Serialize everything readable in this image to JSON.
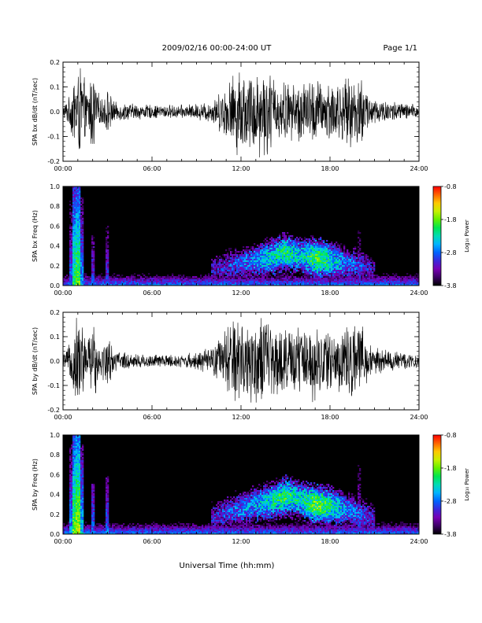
{
  "header": {
    "title": "2009/02/16  00:00-24:00 UT",
    "page": "Page 1/1"
  },
  "colors": {
    "trace": "#000000",
    "colorbar": [
      "#000000",
      "#3c0064",
      "#7800b4",
      "#3c28dc",
      "#0064ff",
      "#00b4ff",
      "#00dcb4",
      "#00e650",
      "#64f000",
      "#c8f000",
      "#ffc800",
      "#ff6400",
      "#ff0000"
    ]
  },
  "chart_data": [
    {
      "id": "bx-timeseries",
      "type": "line",
      "ylabel": "SPA bx dB/dt (nT/sec)",
      "ylim": [
        -0.2,
        0.2
      ],
      "yticks": [
        "0.2",
        "0.1",
        "0.0",
        "-0.1",
        "-0.2"
      ],
      "xlim": [
        0,
        24
      ],
      "xticks": [
        "00:00",
        "06:00",
        "12:00",
        "18:00",
        "24:00"
      ],
      "x": [
        0,
        0.5,
        0.8,
        1.0,
        1.3,
        1.6,
        2.0,
        2.5,
        3.0,
        3.5,
        4.0,
        5.0,
        6.0,
        7.0,
        8.0,
        9.0,
        10.0,
        10.5,
        11.0,
        11.5,
        12.0,
        12.5,
        13.0,
        13.5,
        14.0,
        14.5,
        15.0,
        15.5,
        16.0,
        16.5,
        17.0,
        17.5,
        18.0,
        18.5,
        19.0,
        19.5,
        20.0,
        20.5,
        21.0,
        22.0,
        23.0,
        24.0
      ],
      "amplitude": [
        0.03,
        0.07,
        0.2,
        0.2,
        0.2,
        0.08,
        0.2,
        0.05,
        0.1,
        0.04,
        0.04,
        0.035,
        0.03,
        0.03,
        0.03,
        0.035,
        0.05,
        0.08,
        0.12,
        0.17,
        0.2,
        0.16,
        0.2,
        0.2,
        0.18,
        0.12,
        0.14,
        0.12,
        0.15,
        0.13,
        0.16,
        0.12,
        0.15,
        0.13,
        0.14,
        0.15,
        0.17,
        0.1,
        0.06,
        0.05,
        0.04,
        0.03
      ]
    },
    {
      "id": "bx-spectrogram",
      "type": "heatmap",
      "ylabel": "SPA bx Freq (Hz)",
      "ylim": [
        0.0,
        1.0
      ],
      "yticks": [
        "1.0",
        "0.8",
        "0.6",
        "0.4",
        "0.2",
        "0.0"
      ],
      "xlim": [
        0,
        24
      ],
      "xticks": [
        "00:00",
        "06:00",
        "12:00",
        "18:00",
        "24:00"
      ],
      "colorbar": {
        "label": "Log₁₀ Power",
        "range": [
          -3.8,
          -0.8
        ],
        "ticks": [
          "-0.8",
          "-1.8",
          "-2.8",
          "-3.8"
        ]
      },
      "features": [
        {
          "name": "broadband bursts",
          "t": [
            0.5,
            0.8,
            1.0,
            1.3,
            2.0,
            3.0,
            20.0
          ],
          "f_top": [
            0.9,
            1.0,
            1.0,
            0.9,
            0.5,
            0.6,
            0.8
          ],
          "level": [
            -2.8,
            -2.0,
            -1.8,
            -2.6,
            -3.0,
            -3.0,
            -3.2
          ]
        },
        {
          "name": "enhanced band",
          "t": [
            10,
            11,
            12,
            13,
            14,
            15,
            16,
            17,
            18,
            19,
            20,
            21
          ],
          "f_center": [
            0.15,
            0.2,
            0.22,
            0.25,
            0.28,
            0.33,
            0.3,
            0.28,
            0.25,
            0.22,
            0.2,
            0.15
          ],
          "level": [
            -3.3,
            -3.1,
            -2.9,
            -2.7,
            -2.4,
            -2.2,
            -2.5,
            -2.0,
            -2.3,
            -2.8,
            -3.0,
            -3.3
          ]
        }
      ]
    },
    {
      "id": "by-timeseries",
      "type": "line",
      "ylabel": "SPA by dB/dt (nT/sec)",
      "ylim": [
        -0.2,
        0.2
      ],
      "yticks": [
        "0.2",
        "0.1",
        "0.0",
        "-0.1",
        "-0.2"
      ],
      "xlim": [
        0,
        24
      ],
      "xticks": [
        "00:00",
        "06:00",
        "12:00",
        "18:00",
        "24:00"
      ],
      "x": [
        0,
        0.5,
        0.8,
        1.0,
        1.3,
        1.6,
        2.0,
        2.5,
        3.0,
        3.5,
        4.0,
        5.0,
        6.0,
        7.0,
        8.0,
        9.0,
        10.0,
        10.5,
        11.0,
        11.5,
        12.0,
        12.5,
        13.0,
        13.5,
        14.0,
        14.5,
        15.0,
        15.5,
        16.0,
        16.5,
        17.0,
        17.5,
        18.0,
        18.5,
        19.0,
        19.5,
        20.0,
        20.5,
        21.0,
        22.0,
        23.0,
        24.0
      ],
      "amplitude": [
        0.03,
        0.08,
        0.2,
        0.2,
        0.2,
        0.08,
        0.2,
        0.06,
        0.12,
        0.05,
        0.04,
        0.035,
        0.03,
        0.03,
        0.03,
        0.04,
        0.06,
        0.1,
        0.15,
        0.2,
        0.2,
        0.18,
        0.2,
        0.2,
        0.19,
        0.14,
        0.16,
        0.13,
        0.17,
        0.15,
        0.18,
        0.14,
        0.16,
        0.14,
        0.15,
        0.16,
        0.18,
        0.1,
        0.06,
        0.05,
        0.04,
        0.03
      ]
    },
    {
      "id": "by-spectrogram",
      "type": "heatmap",
      "ylabel": "SPA by Freq (Hz)",
      "ylim": [
        0.0,
        1.0
      ],
      "yticks": [
        "1.0",
        "0.8",
        "0.6",
        "0.4",
        "0.2",
        "0.0"
      ],
      "xlim": [
        0,
        24
      ],
      "xticks": [
        "00:00",
        "06:00",
        "12:00",
        "18:00",
        "24:00"
      ],
      "xlabel": "Universal Time (hh:mm)",
      "colorbar": {
        "label": "Log₁₀ Power",
        "range": [
          -3.8,
          -0.8
        ],
        "ticks": [
          "-0.8",
          "-1.8",
          "-2.8",
          "-3.8"
        ]
      },
      "features": [
        {
          "name": "broadband bursts",
          "t": [
            0.5,
            0.8,
            1.0,
            1.3,
            2.0,
            3.0,
            20.0
          ],
          "f_top": [
            0.9,
            1.0,
            1.0,
            0.9,
            0.5,
            0.6,
            0.8
          ],
          "level": [
            -2.6,
            -1.8,
            -1.6,
            -2.4,
            -2.8,
            -2.8,
            -3.0
          ]
        },
        {
          "name": "enhanced band",
          "t": [
            10,
            11,
            12,
            13,
            14,
            15,
            16,
            17,
            18,
            19,
            20,
            21
          ],
          "f_center": [
            0.15,
            0.22,
            0.25,
            0.3,
            0.33,
            0.38,
            0.35,
            0.3,
            0.28,
            0.25,
            0.2,
            0.15
          ],
          "level": [
            -3.2,
            -3.0,
            -2.8,
            -2.6,
            -2.3,
            -2.1,
            -2.4,
            -1.9,
            -2.2,
            -2.7,
            -2.9,
            -3.2
          ]
        }
      ]
    }
  ]
}
